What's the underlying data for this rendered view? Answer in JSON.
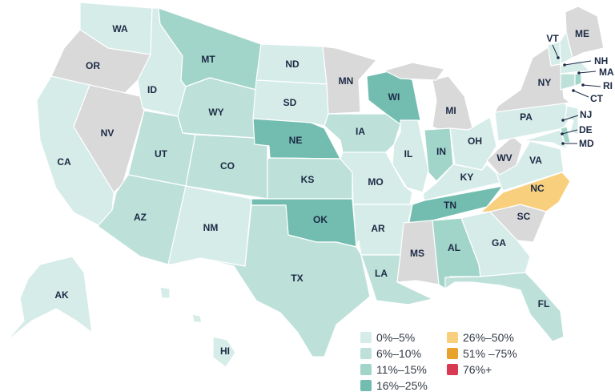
{
  "no_data_color": "#d9d9d9",
  "legend": [
    {
      "label": "0%–5%",
      "color": "#d6ece8"
    },
    {
      "label": "6%–10%",
      "color": "#bde1d9"
    },
    {
      "label": "11%–15%",
      "color": "#a2d5c9"
    },
    {
      "label": "16%–25%",
      "color": "#72bdaf"
    },
    {
      "label": "26%–50%",
      "color": "#f8cf7c"
    },
    {
      "label": "51% –75%",
      "color": "#e8a22e"
    },
    {
      "label": "76%+",
      "color": "#d83a51"
    }
  ],
  "states": {
    "WA": {
      "label": "WA",
      "bin": 0
    },
    "OR": {
      "label": "OR",
      "bin": null
    },
    "CA": {
      "label": "CA",
      "bin": 0
    },
    "NV": {
      "label": "NV",
      "bin": null
    },
    "ID": {
      "label": "ID",
      "bin": 0
    },
    "MT": {
      "label": "MT",
      "bin": 2
    },
    "WY": {
      "label": "WY",
      "bin": 1
    },
    "UT": {
      "label": "UT",
      "bin": 1
    },
    "AZ": {
      "label": "AZ",
      "bin": 1
    },
    "CO": {
      "label": "CO",
      "bin": 1
    },
    "NM": {
      "label": "NM",
      "bin": 0
    },
    "ND": {
      "label": "ND",
      "bin": 0
    },
    "SD": {
      "label": "SD",
      "bin": 0
    },
    "NE": {
      "label": "NE",
      "bin": 3
    },
    "KS": {
      "label": "KS",
      "bin": 1
    },
    "OK": {
      "label": "OK",
      "bin": 3
    },
    "TX": {
      "label": "TX",
      "bin": 1
    },
    "MN": {
      "label": "MN",
      "bin": null
    },
    "IA": {
      "label": "IA",
      "bin": 1
    },
    "MO": {
      "label": "MO",
      "bin": 0
    },
    "AR": {
      "label": "AR",
      "bin": 0
    },
    "LA": {
      "label": "LA",
      "bin": 1
    },
    "WI": {
      "label": "WI",
      "bin": 3
    },
    "IL": {
      "label": "IL",
      "bin": 0
    },
    "MI": {
      "label": "MI",
      "bin": null
    },
    "IN": {
      "label": "IN",
      "bin": 2
    },
    "OH": {
      "label": "OH",
      "bin": 0
    },
    "KY": {
      "label": "KY",
      "bin": 0
    },
    "TN": {
      "label": "TN",
      "bin": 3
    },
    "MS": {
      "label": "MS",
      "bin": null
    },
    "AL": {
      "label": "AL",
      "bin": 2
    },
    "GA": {
      "label": "GA",
      "bin": 0
    },
    "FL": {
      "label": "FL",
      "bin": 1
    },
    "SC": {
      "label": "SC",
      "bin": null
    },
    "NC": {
      "label": "NC",
      "bin": 4
    },
    "VA": {
      "label": "VA",
      "bin": 0
    },
    "WV": {
      "label": "WV",
      "bin": null
    },
    "PA": {
      "label": "PA",
      "bin": 0
    },
    "NY": {
      "label": "NY",
      "bin": null
    },
    "VT": {
      "label": "VT",
      "bin": 0
    },
    "NH": {
      "label": "NH",
      "bin": 0
    },
    "ME": {
      "label": "ME",
      "bin": null
    },
    "MA": {
      "label": "MA",
      "bin": 0
    },
    "RI": {
      "label": "RI",
      "bin": 2
    },
    "CT": {
      "label": "CT",
      "bin": 1
    },
    "NJ": {
      "label": "NJ",
      "bin": 0
    },
    "DE": {
      "label": "DE",
      "bin": 2
    },
    "MD": {
      "label": "MD",
      "bin": 0
    },
    "AK": {
      "label": "AK",
      "bin": 0
    },
    "HI": {
      "label": "HI",
      "bin": 0
    }
  }
}
